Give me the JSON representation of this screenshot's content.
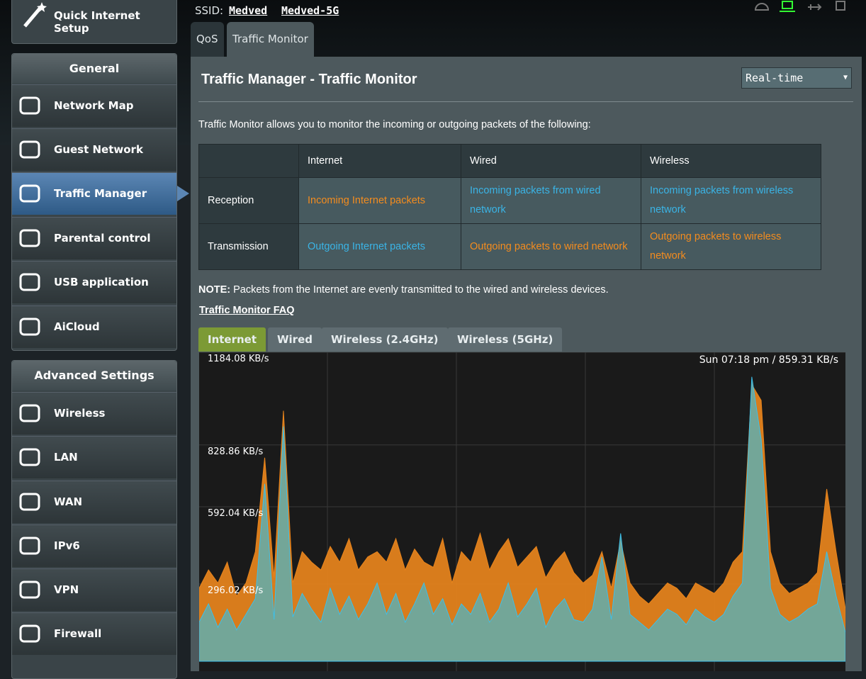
{
  "header": {
    "ssid_label": "SSID:",
    "ssids": [
      "Medved",
      "Medved-5G"
    ]
  },
  "sidebar": {
    "quick_setup": "Quick Internet Setup",
    "general_title": "General",
    "general_items": [
      "Network Map",
      "Guest Network",
      "Traffic Manager",
      "Parental control",
      "USB application",
      "AiCloud"
    ],
    "advanced_title": "Advanced Settings",
    "advanced_items": [
      "Wireless",
      "LAN",
      "WAN",
      "IPv6",
      "VPN",
      "Firewall"
    ]
  },
  "tabs": [
    "QoS",
    "Traffic Monitor"
  ],
  "panel": {
    "title": "Traffic Manager - Traffic Monitor",
    "period_select": "Real-time",
    "intro": "Traffic Monitor allows you to monitor the incoming or outgoing packets of the following:",
    "table": {
      "columns": [
        "Internet",
        "Wired",
        "Wireless"
      ],
      "rows": [
        {
          "label": "Reception",
          "cells": [
            "Incoming Internet packets",
            "Incoming packets from wired network",
            "Incoming packets from wireless network"
          ]
        },
        {
          "label": "Transmission",
          "cells": [
            "Outgoing Internet packets",
            "Outgoing packets to wired network",
            "Outgoing packets to wireless network"
          ]
        }
      ]
    },
    "note_label": "NOTE:",
    "note": "Packets from the Internet are evenly transmitted to the wired and wireless devices.",
    "faq_link": "Traffic Monitor FAQ"
  },
  "chart_tabs": [
    "Internet",
    "Wired",
    "Wireless (2.4GHz)",
    "Wireless (5GHz)"
  ],
  "chart_data": {
    "type": "area",
    "status": "Sun 07:18 pm / 859.31 KB/s",
    "ylim": [
      0,
      1184.08
    ],
    "yticks": [
      {
        "value": 296.02,
        "label": "296.02 KB/s"
      },
      {
        "value": 592.04,
        "label": "592.04 KB/s"
      },
      {
        "value": 828.86,
        "label": "828.86 KB/s"
      },
      {
        "value": 1184.08,
        "label": "1184.08 KB/s"
      }
    ],
    "grid": true,
    "series": [
      {
        "color": "#e8841c",
        "values": [
          280,
          350,
          300,
          380,
          250,
          300,
          420,
          780,
          320,
          960,
          300,
          420,
          380,
          350,
          440,
          380,
          470,
          350,
          400,
          420,
          380,
          470,
          350,
          430,
          380,
          360,
          470,
          300,
          420,
          380,
          490,
          350,
          420,
          470,
          360,
          400,
          440,
          320,
          380,
          420,
          340,
          300,
          330,
          420,
          280,
          460,
          300,
          250,
          220,
          260,
          300,
          280,
          240,
          300,
          280,
          260,
          300,
          380,
          420,
          1060,
          1000,
          420,
          300,
          260,
          280,
          300,
          340,
          660,
          420,
          200
        ]
      },
      {
        "color": "#6aa9a3",
        "values": [
          150,
          220,
          130,
          200,
          120,
          180,
          240,
          680,
          160,
          900,
          170,
          260,
          200,
          150,
          280,
          180,
          250,
          160,
          220,
          300,
          180,
          260,
          150,
          220,
          300,
          180,
          240,
          140,
          220,
          180,
          260,
          150,
          200,
          300,
          170,
          220,
          280,
          130,
          200,
          240,
          160,
          150,
          200,
          400,
          160,
          490,
          180,
          150,
          120,
          160,
          200,
          180,
          140,
          200,
          170,
          150,
          180,
          250,
          300,
          1090,
          850,
          280,
          180,
          150,
          170,
          200,
          220,
          420,
          250,
          110
        ]
      }
    ]
  }
}
